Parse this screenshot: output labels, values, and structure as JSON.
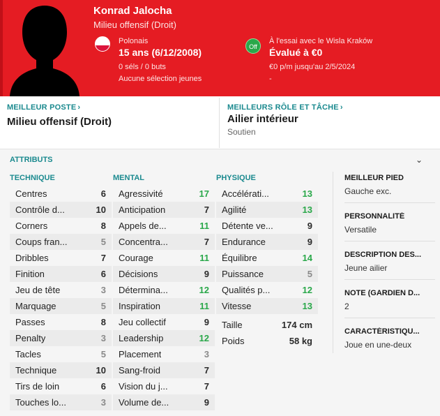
{
  "player": {
    "name": "Konrad Jalocha",
    "position": "Milieu offensif (Droit)",
    "nationality": "Polonais",
    "age_dob": "15 ans (6/12/2008)",
    "caps_goals": "0 séls / 0 buts",
    "intl_note": "Aucune sélection jeunes",
    "contract_badge": "Off",
    "contract_status": "À l'essai avec le Wisla Kraków",
    "value": "Évalué à €0",
    "wage": "€0 p/m jusqu'au 2/5/2024",
    "extra": "-"
  },
  "best_position": {
    "title": "MEILLEUR POSTE",
    "value": "Milieu offensif (Droit)"
  },
  "best_role": {
    "title": "MEILLEURS RÔLE ET TÂCHE",
    "value": "Ailier intérieur",
    "duty": "Soutien"
  },
  "attributes": {
    "title": "ATTRIBUTS",
    "technique_title": "TECHNIQUE",
    "mental_title": "MENTAL",
    "physique_title": "PHYSIQUE",
    "technique": [
      {
        "name": "Centres",
        "value": "6"
      },
      {
        "name": "Contrôle d...",
        "value": "10"
      },
      {
        "name": "Corners",
        "value": "8"
      },
      {
        "name": "Coups fran...",
        "value": "5"
      },
      {
        "name": "Dribbles",
        "value": "7"
      },
      {
        "name": "Finition",
        "value": "6"
      },
      {
        "name": "Jeu de tête",
        "value": "3"
      },
      {
        "name": "Marquage",
        "value": "5"
      },
      {
        "name": "Passes",
        "value": "8"
      },
      {
        "name": "Penalty",
        "value": "3"
      },
      {
        "name": "Tacles",
        "value": "5"
      },
      {
        "name": "Technique",
        "value": "10"
      },
      {
        "name": "Tirs de loin",
        "value": "6"
      },
      {
        "name": "Touches lo...",
        "value": "3"
      }
    ],
    "mental": [
      {
        "name": "Agressivité",
        "value": "17"
      },
      {
        "name": "Anticipation",
        "value": "7"
      },
      {
        "name": "Appels de...",
        "value": "11"
      },
      {
        "name": "Concentra...",
        "value": "7"
      },
      {
        "name": "Courage",
        "value": "11"
      },
      {
        "name": "Décisions",
        "value": "9"
      },
      {
        "name": "Détermina...",
        "value": "12"
      },
      {
        "name": "Inspiration",
        "value": "11"
      },
      {
        "name": "Jeu collectif",
        "value": "9"
      },
      {
        "name": "Leadership",
        "value": "12"
      },
      {
        "name": "Placement",
        "value": "3"
      },
      {
        "name": "Sang-froid",
        "value": "7"
      },
      {
        "name": "Vision du j...",
        "value": "7"
      },
      {
        "name": "Volume de...",
        "value": "9"
      }
    ],
    "physique": [
      {
        "name": "Accélérati...",
        "value": "13"
      },
      {
        "name": "Agilité",
        "value": "13"
      },
      {
        "name": "Détente ve...",
        "value": "9"
      },
      {
        "name": "Endurance",
        "value": "9"
      },
      {
        "name": "Équilibre",
        "value": "14"
      },
      {
        "name": "Puissance",
        "value": "5"
      },
      {
        "name": "Qualités p...",
        "value": "12"
      },
      {
        "name": "Vitesse",
        "value": "13"
      }
    ],
    "height_label": "Taille",
    "height": "174 cm",
    "weight_label": "Poids",
    "weight": "58 kg"
  },
  "info": {
    "foot_title": "MEILLEUR PIED",
    "foot": "Gauche exc.",
    "personality_title": "PERSONNALITÉ",
    "personality": "Versatile",
    "description_title": "DESCRIPTION DES...",
    "description": "Jeune ailier",
    "gk_title": "NOTE (GARDIEN D...",
    "gk": "2",
    "traits_title": "CARACTÉRISTIQU...",
    "traits": "Joue en une-deux"
  },
  "colors": {
    "header_red": "#e51c23",
    "accent_teal": "#1b8a8f",
    "high_green": "#2aa84a",
    "low_grey": "#8a8a8a"
  }
}
